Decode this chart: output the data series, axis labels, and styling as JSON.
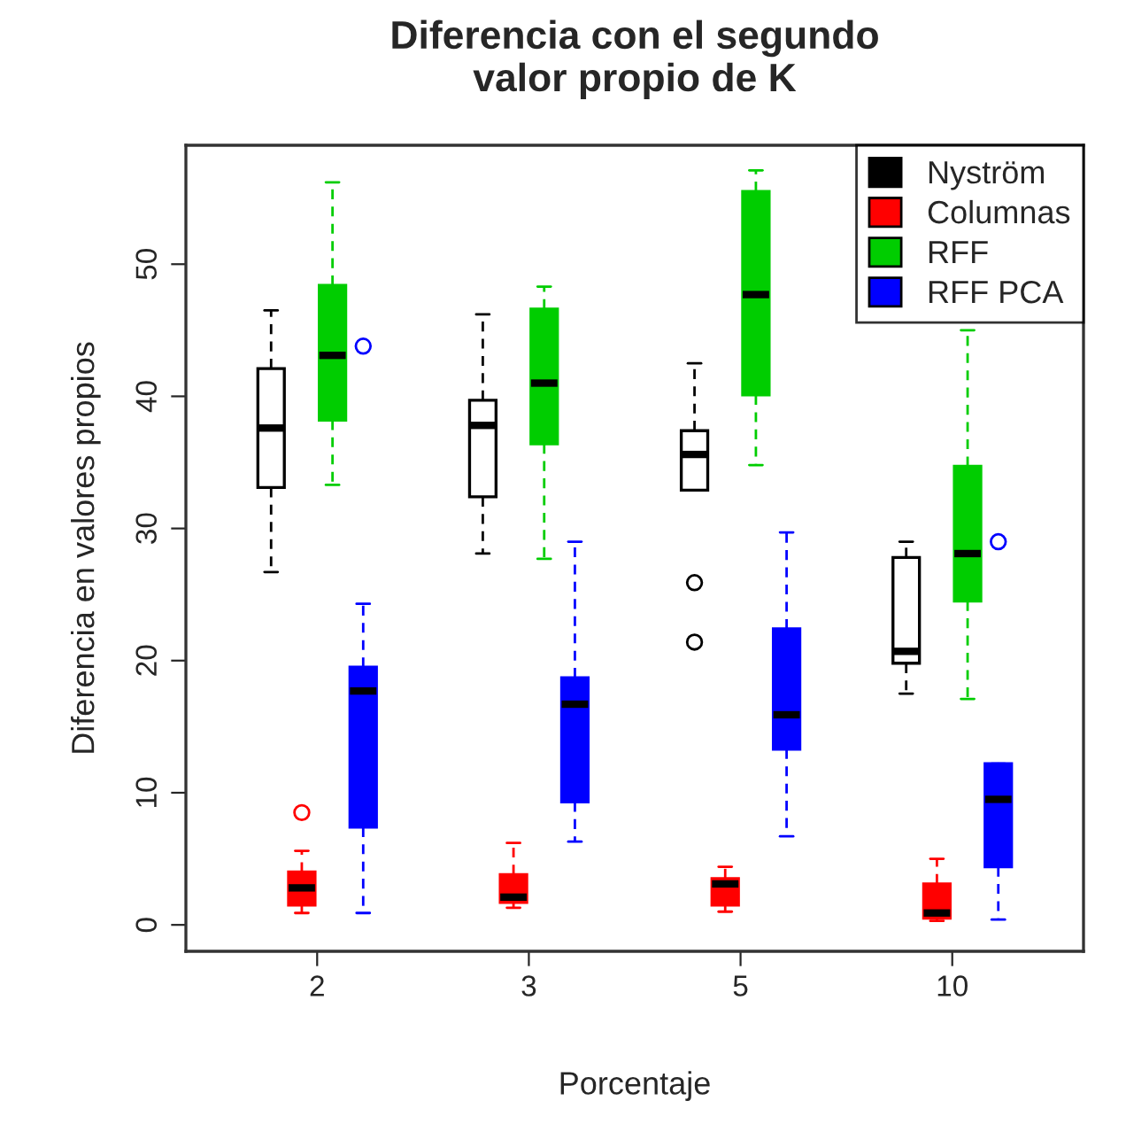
{
  "chart_data": {
    "type": "box",
    "title": "Diferencia con el segundo\nvalor propio de K",
    "xlabel": "Porcentaje",
    "ylabel": "Diferencia en valores propios",
    "categories": [
      "2",
      "3",
      "5",
      "10"
    ],
    "ylim": [
      -2,
      59
    ],
    "yticks": [
      0,
      10,
      20,
      30,
      40,
      50
    ],
    "grid": false,
    "legend": "top right",
    "line_style": "dashed",
    "marker": "circle",
    "series": [
      {
        "name": "Nyström",
        "color": "#000000",
        "colors": [
          "#ffffff",
          "#ffffff",
          "#ffffff",
          "#ffffff"
        ],
        "boxes": [
          {
            "low": 26.7,
            "q1": 33.1,
            "median": 37.6,
            "q3": 42.1,
            "high": 46.5
          },
          {
            "low": 28.1,
            "q1": 32.4,
            "median": 37.8,
            "q3": 39.7,
            "high": 46.2
          },
          {
            "low": 32.9,
            "q1": 32.9,
            "median": 35.6,
            "q3": 37.4,
            "high": 42.5,
            "outliers": [
              25.9,
              21.4
            ]
          },
          {
            "low": 17.5,
            "q1": 19.8,
            "median": 20.7,
            "q3": 27.8,
            "high": 29.0
          }
        ]
      },
      {
        "name": "Columnas",
        "color": "#ff0000",
        "boxes": [
          {
            "low": 0.9,
            "q1": 1.5,
            "median": 2.8,
            "q3": 4.0,
            "high": 5.6,
            "outliers": [
              8.5
            ]
          },
          {
            "low": 1.3,
            "q1": 1.7,
            "median": 2.1,
            "q3": 3.8,
            "high": 6.2
          },
          {
            "low": 1.0,
            "q1": 1.5,
            "median": 3.1,
            "q3": 3.5,
            "high": 4.4
          },
          {
            "low": 0.3,
            "q1": 0.5,
            "median": 0.9,
            "q3": 3.1,
            "high": 5.0
          }
        ]
      },
      {
        "name": "RFF",
        "color": "#00cd00",
        "boxes": [
          {
            "low": 33.3,
            "q1": 38.2,
            "median": 43.1,
            "q3": 48.4,
            "high": 56.2
          },
          {
            "low": 27.7,
            "q1": 36.4,
            "median": 41.0,
            "q3": 46.6,
            "high": 48.3
          },
          {
            "low": 34.8,
            "q1": 40.1,
            "median": 47.7,
            "q3": 55.5,
            "high": 57.1
          },
          {
            "low": 17.1,
            "q1": 24.5,
            "median": 28.1,
            "q3": 34.7,
            "high": 45.0
          }
        ]
      },
      {
        "name": "RFF PCA",
        "color": "#0000ff",
        "boxes": [
          {
            "low": 0.9,
            "q1": 7.4,
            "median": 17.7,
            "q3": 19.5,
            "high": 24.3,
            "outliers": [
              43.8
            ]
          },
          {
            "low": 6.3,
            "q1": 9.3,
            "median": 16.7,
            "q3": 18.7,
            "high": 29.0
          },
          {
            "low": 6.7,
            "q1": 13.3,
            "median": 15.9,
            "q3": 22.4,
            "high": 29.7
          },
          {
            "low": 0.4,
            "q1": 4.4,
            "median": 9.5,
            "q3": 12.2,
            "high": 12.2,
            "outliers": [
              29.0
            ]
          }
        ]
      }
    ]
  }
}
